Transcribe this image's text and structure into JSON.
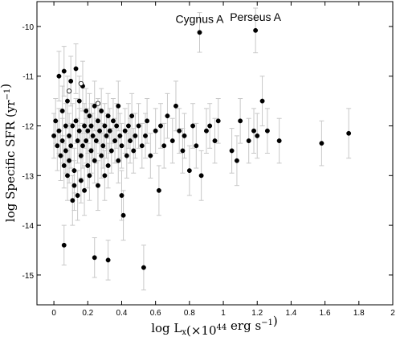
{
  "chart_data": {
    "type": "scatter",
    "title": "",
    "xlabel": "log L_x(×10^44 erg s^-1)",
    "ylabel": "log Specific SFR (yr^-1)",
    "xlim": [
      -0.1,
      2.0
    ],
    "ylim": [
      -15.6,
      -9.5
    ],
    "x_ticks": [
      "0",
      "0.2",
      "0.4",
      "0.6",
      "0.8",
      "1",
      "1.2",
      "1.4",
      "1.6",
      "1.8",
      "2"
    ],
    "y_ticks": [
      "-10",
      "-11",
      "-12",
      "-13",
      "-14",
      "-15"
    ],
    "grid": false,
    "legend": "none",
    "annotations": [
      {
        "text": "Cygnus A",
        "x": 0.86,
        "y": -10.12
      },
      {
        "text": "Perseus A",
        "x": 1.19,
        "y": -10.08
      }
    ],
    "series": [
      {
        "marker": "filled-circle",
        "points": [
          [
            0.0,
            -12.2,
            0.45
          ],
          [
            0.01,
            -11.9,
            0.45
          ],
          [
            0.02,
            -12.4,
            0.5
          ],
          [
            0.03,
            -11.0,
            0.5
          ],
          [
            0.03,
            -12.1,
            0.45
          ],
          [
            0.04,
            -12.6,
            0.5
          ],
          [
            0.05,
            -12.3,
            0.45
          ],
          [
            0.05,
            -11.7,
            0.5
          ],
          [
            0.06,
            -10.9,
            0.5
          ],
          [
            0.06,
            -12.8,
            0.45
          ],
          [
            0.07,
            -12.0,
            0.45
          ],
          [
            0.07,
            -12.5,
            0.45
          ],
          [
            0.08,
            -11.5,
            0.5
          ],
          [
            0.08,
            -13.0,
            0.5
          ],
          [
            0.09,
            -12.2,
            0.45
          ],
          [
            0.09,
            -12.7,
            0.45
          ],
          [
            0.1,
            -11.1,
            0.5
          ],
          [
            0.1,
            -12.4,
            0.45
          ],
          [
            0.11,
            -13.5,
            0.5
          ],
          [
            0.11,
            -12.0,
            0.45
          ],
          [
            0.12,
            -12.9,
            0.45
          ],
          [
            0.12,
            -13.2,
            0.5
          ],
          [
            0.13,
            -10.85,
            0.5
          ],
          [
            0.13,
            -11.9,
            0.45
          ],
          [
            0.14,
            -12.3,
            0.45
          ],
          [
            0.14,
            -13.4,
            0.5
          ],
          [
            0.15,
            -12.1,
            0.45
          ],
          [
            0.15,
            -11.5,
            0.5
          ],
          [
            0.16,
            -12.6,
            0.45
          ],
          [
            0.16,
            -13.1,
            0.45
          ],
          [
            0.17,
            -11.2,
            0.5
          ],
          [
            0.17,
            -12.4,
            0.45
          ],
          [
            0.18,
            -12.0,
            0.45
          ],
          [
            0.18,
            -13.3,
            0.5
          ],
          [
            0.19,
            -11.7,
            0.45
          ],
          [
            0.19,
            -12.3,
            0.45
          ],
          [
            0.2,
            -12.8,
            0.45
          ],
          [
            0.2,
            -12.1,
            0.45
          ],
          [
            0.21,
            -11.8,
            0.45
          ],
          [
            0.21,
            -13.0,
            0.5
          ],
          [
            0.22,
            -12.5,
            0.45
          ],
          [
            0.22,
            -12.0,
            0.45
          ],
          [
            0.23,
            -12.2,
            0.45
          ],
          [
            0.24,
            -11.6,
            0.5
          ],
          [
            0.24,
            -12.7,
            0.45
          ],
          [
            0.25,
            -12.3,
            0.45
          ],
          [
            0.26,
            -11.9,
            0.45
          ],
          [
            0.26,
            -13.2,
            0.5
          ],
          [
            0.27,
            -12.1,
            0.45
          ],
          [
            0.28,
            -12.6,
            0.45
          ],
          [
            0.28,
            -11.7,
            0.45
          ],
          [
            0.29,
            -12.4,
            0.45
          ],
          [
            0.3,
            -12.0,
            0.45
          ],
          [
            0.3,
            -13.0,
            0.5
          ],
          [
            0.31,
            -12.2,
            0.45
          ],
          [
            0.32,
            -11.8,
            0.45
          ],
          [
            0.32,
            -12.8,
            0.45
          ],
          [
            0.33,
            -12.1,
            0.45
          ],
          [
            0.34,
            -12.5,
            0.45
          ],
          [
            0.35,
            -11.9,
            0.45
          ],
          [
            0.36,
            -12.3,
            0.45
          ],
          [
            0.37,
            -12.0,
            0.45
          ],
          [
            0.38,
            -12.7,
            0.45
          ],
          [
            0.38,
            -11.6,
            0.5
          ],
          [
            0.39,
            -12.2,
            0.45
          ],
          [
            0.4,
            -13.4,
            0.5
          ],
          [
            0.4,
            -12.4,
            0.45
          ],
          [
            0.41,
            -13.8,
            0.5
          ],
          [
            0.42,
            -12.1,
            0.45
          ],
          [
            0.43,
            -12.6,
            0.45
          ],
          [
            0.44,
            -12.0,
            0.45
          ],
          [
            0.45,
            -12.3,
            0.45
          ],
          [
            0.46,
            -11.8,
            0.45
          ],
          [
            0.47,
            -12.5,
            0.45
          ],
          [
            0.48,
            -12.2,
            0.45
          ],
          [
            0.5,
            -12.0,
            0.45
          ],
          [
            0.52,
            -12.4,
            0.45
          ],
          [
            0.54,
            -12.2,
            0.45
          ],
          [
            0.55,
            -11.9,
            0.45
          ],
          [
            0.57,
            -12.6,
            0.45
          ],
          [
            0.6,
            -12.1,
            0.45
          ],
          [
            0.62,
            -13.3,
            0.5
          ],
          [
            0.63,
            -12.0,
            0.45
          ],
          [
            0.65,
            -12.4,
            0.45
          ],
          [
            0.67,
            -11.8,
            0.45
          ],
          [
            0.7,
            -12.3,
            0.45
          ],
          [
            0.72,
            -11.6,
            0.5
          ],
          [
            0.74,
            -12.1,
            0.45
          ],
          [
            0.76,
            -12.5,
            0.45
          ],
          [
            0.77,
            -12.2,
            0.45
          ],
          [
            0.8,
            -12.9,
            0.5
          ],
          [
            0.82,
            -12.0,
            0.45
          ],
          [
            0.84,
            -12.4,
            0.45
          ],
          [
            0.87,
            -13.0,
            0.5
          ],
          [
            0.9,
            -12.1,
            0.45
          ],
          [
            0.92,
            -12.0,
            0.45
          ],
          [
            0.95,
            -12.3,
            0.45
          ],
          [
            0.97,
            -11.9,
            0.45
          ],
          [
            1.05,
            -12.5,
            0.45
          ],
          [
            1.08,
            -12.7,
            0.5
          ],
          [
            1.1,
            -11.9,
            0.45
          ],
          [
            1.15,
            -12.3,
            0.45
          ],
          [
            1.18,
            -12.1,
            0.45
          ],
          [
            1.2,
            -12.2,
            0.45
          ],
          [
            1.23,
            -11.5,
            0.5
          ],
          [
            1.26,
            -12.1,
            0.45
          ],
          [
            1.33,
            -12.3,
            0.45
          ],
          [
            1.58,
            -12.35,
            0.45
          ],
          [
            1.74,
            -12.15,
            0.5
          ],
          [
            0.06,
            -14.4,
            0.4
          ],
          [
            0.24,
            -14.65,
            0.4
          ],
          [
            0.32,
            -14.7,
            0.4
          ],
          [
            0.53,
            -14.85,
            0.45
          ],
          [
            0.86,
            -10.12,
            0.4
          ],
          [
            1.19,
            -10.08,
            0.45
          ]
        ]
      },
      {
        "marker": "open-circle",
        "points": [
          [
            0.09,
            -11.3,
            0.0
          ],
          [
            0.16,
            -11.15,
            0.0
          ],
          [
            0.26,
            -11.55,
            0.0
          ]
        ]
      }
    ],
    "point_format": [
      "log_Lx",
      "log_specific_SFR",
      "error"
    ]
  }
}
